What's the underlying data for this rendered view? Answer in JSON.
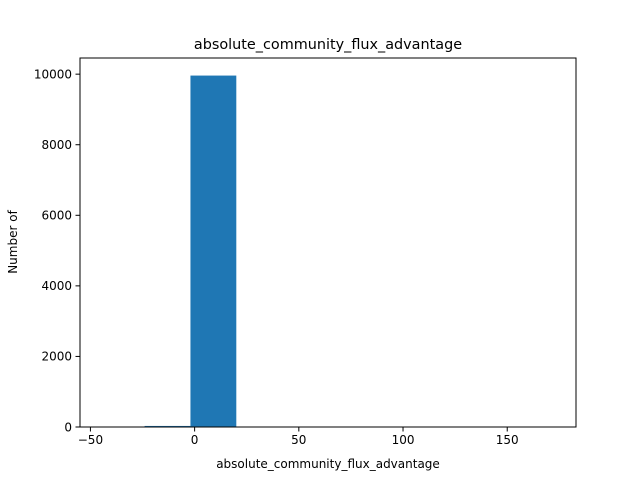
{
  "chart_data": {
    "type": "bar",
    "title": "absolute_community_flux_advantage",
    "xlabel": "absolute_community_flux_advantage",
    "ylabel": "Number of",
    "bin_edges": [
      -46,
      -24,
      -2,
      20,
      42,
      64,
      86,
      108,
      130,
      152,
      174
    ],
    "counts": [
      2,
      30,
      9960,
      4,
      2,
      1,
      0,
      0,
      0,
      1
    ],
    "xlim": [
      -55,
      183
    ],
    "ylim": [
      0,
      10458
    ],
    "xticks": [
      -50,
      0,
      50,
      100,
      150
    ],
    "yticks": [
      0,
      2000,
      4000,
      6000,
      8000,
      10000
    ],
    "xtick_labels": [
      "−50",
      "0",
      "50",
      "100",
      "150"
    ],
    "ytick_labels": [
      "0",
      "2000",
      "4000",
      "6000",
      "8000",
      "10000"
    ],
    "grid": false,
    "bar_color": "#1f77b4"
  }
}
